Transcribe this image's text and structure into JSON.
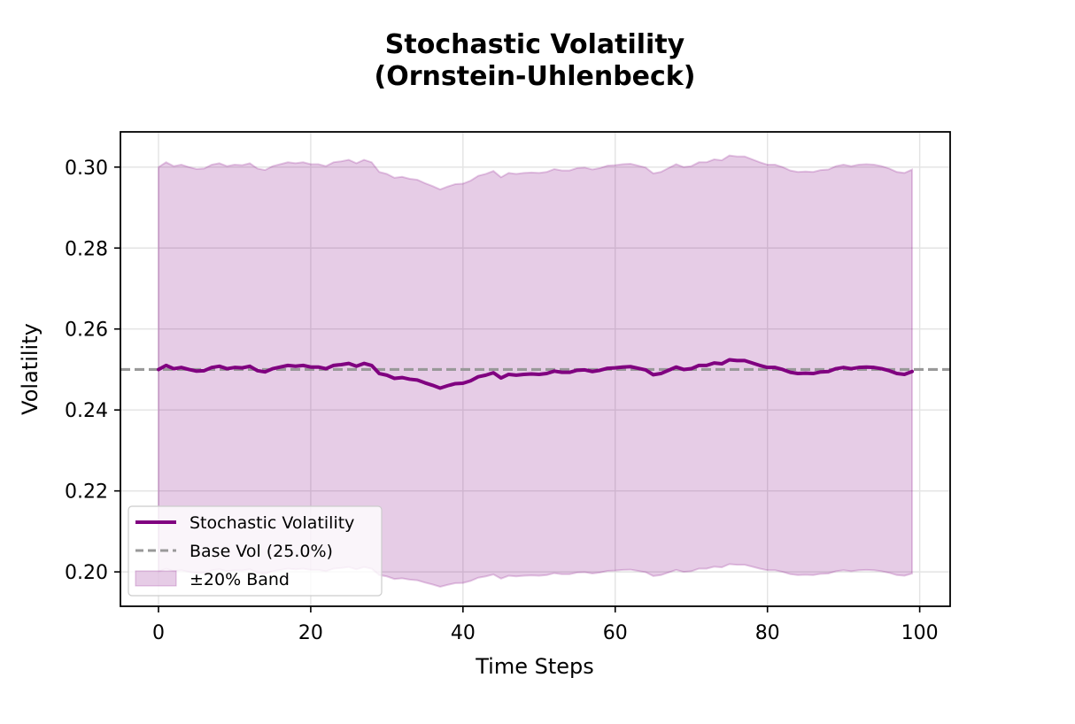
{
  "chart_data": {
    "type": "line",
    "title_lines": [
      "Stochastic Volatility",
      "(Ornstein-Uhlenbeck)"
    ],
    "xlabel": "Time Steps",
    "ylabel": "Volatility",
    "xlim": [
      -5,
      104
    ],
    "ylim": [
      0.1915,
      0.3087
    ],
    "xticks": [
      0,
      20,
      40,
      60,
      80,
      100
    ],
    "xtick_labels": [
      "0",
      "20",
      "40",
      "60",
      "80",
      "100"
    ],
    "yticks": [
      0.2,
      0.22,
      0.24,
      0.26,
      0.28,
      0.3
    ],
    "ytick_labels": [
      "0.20",
      "0.22",
      "0.24",
      "0.26",
      "0.28",
      "0.30"
    ],
    "grid": true,
    "legend_position": "lower-left",
    "colors": {
      "line": "#800080",
      "band_fill": "#800080",
      "base": "#999999"
    },
    "base_vol": 0.25,
    "band_pct": 0.2,
    "legend": [
      "Stochastic Volatility",
      "Base Vol (25.0%)",
      "±20% Band"
    ],
    "x": [
      0,
      1,
      2,
      3,
      4,
      5,
      6,
      7,
      8,
      9,
      10,
      11,
      12,
      13,
      14,
      15,
      16,
      17,
      18,
      19,
      20,
      21,
      22,
      23,
      24,
      25,
      26,
      27,
      28,
      29,
      30,
      31,
      32,
      33,
      34,
      35,
      36,
      37,
      38,
      39,
      40,
      41,
      42,
      43,
      44,
      45,
      46,
      47,
      48,
      49,
      50,
      51,
      52,
      53,
      54,
      55,
      56,
      57,
      58,
      59,
      60,
      61,
      62,
      63,
      64,
      65,
      66,
      67,
      68,
      69,
      70,
      71,
      72,
      73,
      74,
      75,
      76,
      77,
      78,
      79,
      80,
      81,
      82,
      83,
      84,
      85,
      86,
      87,
      88,
      89,
      90,
      91,
      92,
      93,
      94,
      95,
      96,
      97,
      98,
      99
    ],
    "series": [
      {
        "name": "Stochastic Volatility",
        "values": [
          0.25,
          0.251,
          0.2502,
          0.2505,
          0.25,
          0.2496,
          0.2497,
          0.2505,
          0.2508,
          0.2502,
          0.2505,
          0.2504,
          0.2508,
          0.2497,
          0.2494,
          0.2502,
          0.2506,
          0.251,
          0.2508,
          0.251,
          0.2506,
          0.2506,
          0.2502,
          0.251,
          0.2512,
          0.2515,
          0.2508,
          0.2515,
          0.251,
          0.249,
          0.2486,
          0.2478,
          0.248,
          0.2476,
          0.2474,
          0.2467,
          0.2461,
          0.2454,
          0.246,
          0.2465,
          0.2466,
          0.2472,
          0.2482,
          0.2486,
          0.2492,
          0.2479,
          0.2488,
          0.2486,
          0.2488,
          0.2489,
          0.2488,
          0.249,
          0.2496,
          0.2493,
          0.2493,
          0.2498,
          0.2499,
          0.2495,
          0.2498,
          0.2503,
          0.2504,
          0.2506,
          0.2507,
          0.2503,
          0.2499,
          0.2487,
          0.249,
          0.2498,
          0.2506,
          0.25,
          0.2502,
          0.251,
          0.251,
          0.2516,
          0.2514,
          0.2524,
          0.2522,
          0.2522,
          0.2516,
          0.251,
          0.2505,
          0.2505,
          0.25,
          0.2493,
          0.249,
          0.2491,
          0.249,
          0.2494,
          0.2495,
          0.2502,
          0.2505,
          0.2502,
          0.2505,
          0.2506,
          0.2505,
          0.2502,
          0.2497,
          0.249,
          0.2488,
          0.2495
        ]
      }
    ]
  }
}
